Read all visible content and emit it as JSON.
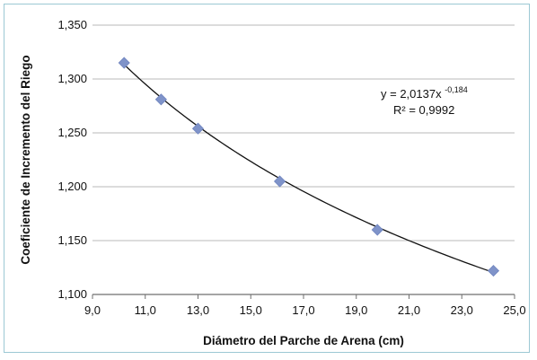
{
  "chart_data": {
    "type": "scatter",
    "xlabel": "Diámetro del Parche de Arena (cm)",
    "ylabel": "Coeficiente de Incremento del Riego",
    "xlim": [
      9.0,
      25.0
    ],
    "ylim": [
      1.1,
      1.35
    ],
    "x_ticks": [
      "9,0",
      "11,0",
      "13,0",
      "15,0",
      "17,0",
      "19,0",
      "21,0",
      "23,0",
      "25,0"
    ],
    "y_ticks": [
      "1,100",
      "1,150",
      "1,200",
      "1,250",
      "1,300",
      "1,350"
    ],
    "grid": "horizontal",
    "marker": "diamond",
    "marker_color": "#7f93c9",
    "line_color": "#111111",
    "points": [
      {
        "x": 10.2,
        "y": 1.315
      },
      {
        "x": 11.6,
        "y": 1.281
      },
      {
        "x": 13.0,
        "y": 1.254
      },
      {
        "x": 16.1,
        "y": 1.205
      },
      {
        "x": 19.8,
        "y": 1.16
      },
      {
        "x": 24.2,
        "y": 1.122
      }
    ],
    "trendline": {
      "type": "power",
      "a": 2.0137,
      "b": -0.184,
      "x_range": [
        10.2,
        24.2
      ]
    },
    "annotation": {
      "equation_base": "y = 2,0137x",
      "equation_exponent": "-0,184",
      "r_squared": "R² = 0,9992"
    }
  }
}
